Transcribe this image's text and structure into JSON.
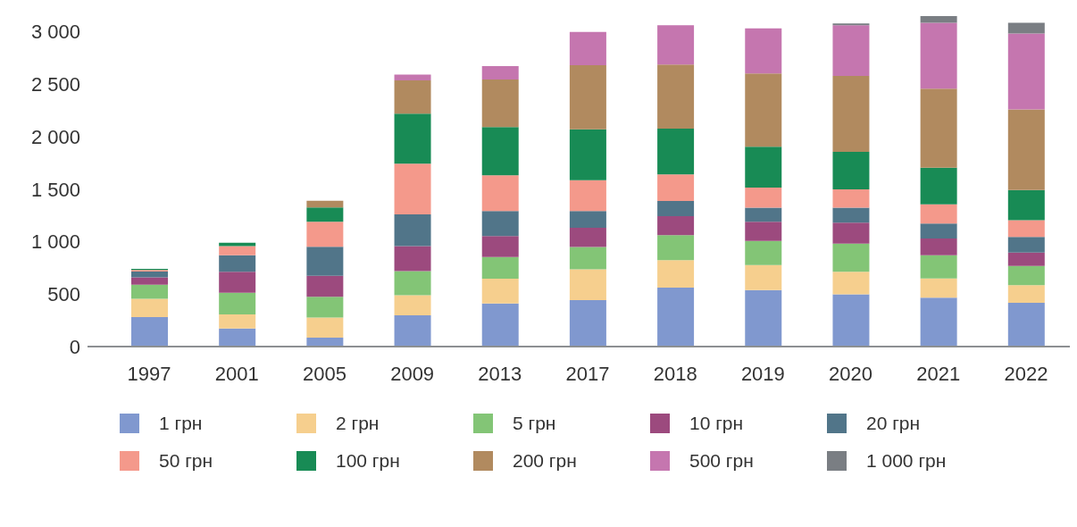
{
  "chart_data": {
    "type": "bar",
    "stacked": true,
    "categories": [
      "1997",
      "2001",
      "2005",
      "2009",
      "2013",
      "2017",
      "2018",
      "2019",
      "2020",
      "2021",
      "2022"
    ],
    "series": [
      {
        "name": "1 грн",
        "color": "#8098cf",
        "values": [
          280,
          172,
          85,
          299,
          410,
          442,
          561,
          538,
          498,
          466,
          418
        ]
      },
      {
        "name": "2 грн",
        "color": "#f6cf8e",
        "values": [
          175,
          135,
          191,
          190,
          238,
          294,
          262,
          238,
          214,
          183,
          167
        ]
      },
      {
        "name": "5 грн",
        "color": "#83c576",
        "values": [
          135,
          206,
          199,
          230,
          206,
          214,
          238,
          230,
          270,
          222,
          183
        ]
      },
      {
        "name": "10 грн",
        "color": "#9c4a7e",
        "values": [
          70,
          199,
          199,
          238,
          199,
          183,
          183,
          183,
          199,
          159,
          127
        ]
      },
      {
        "name": "20 грн",
        "color": "#517589",
        "values": [
          55,
          159,
          278,
          302,
          238,
          159,
          143,
          135,
          143,
          143,
          151
        ]
      },
      {
        "name": "50 грн",
        "color": "#f4998b",
        "values": [
          15,
          87,
          238,
          484,
          341,
          294,
          254,
          191,
          175,
          183,
          159
        ]
      },
      {
        "name": "100 грн",
        "color": "#188b55",
        "values": [
          10,
          32,
          135,
          476,
          461,
          484,
          437,
          389,
          357,
          349,
          286
        ]
      },
      {
        "name": "200 грн",
        "color": "#b18a5f",
        "values": [
          null,
          null,
          64,
          318,
          453,
          611,
          611,
          699,
          723,
          754,
          770
        ]
      },
      {
        "name": "500 грн",
        "color": "#c576af",
        "values": [
          null,
          null,
          null,
          56,
          127,
          318,
          373,
          429,
          484,
          627,
          723
        ]
      },
      {
        "name": "1 000 грн",
        "color": "#7a7e83",
        "values": [
          null,
          null,
          null,
          null,
          null,
          null,
          null,
          null,
          16,
          64,
          103
        ]
      }
    ],
    "ylim": [
      0,
      3150
    ],
    "yticks": [
      0,
      500,
      {
        "value": 1000,
        "label": "1 000"
      },
      {
        "value": 1500,
        "label": "1 500"
      },
      {
        "value": 2000,
        "label": "2 000"
      },
      {
        "value": 2500,
        "label": "2 500"
      },
      {
        "value": 3000,
        "label": "3 000"
      }
    ],
    "grid": false,
    "legend": "bottom"
  }
}
